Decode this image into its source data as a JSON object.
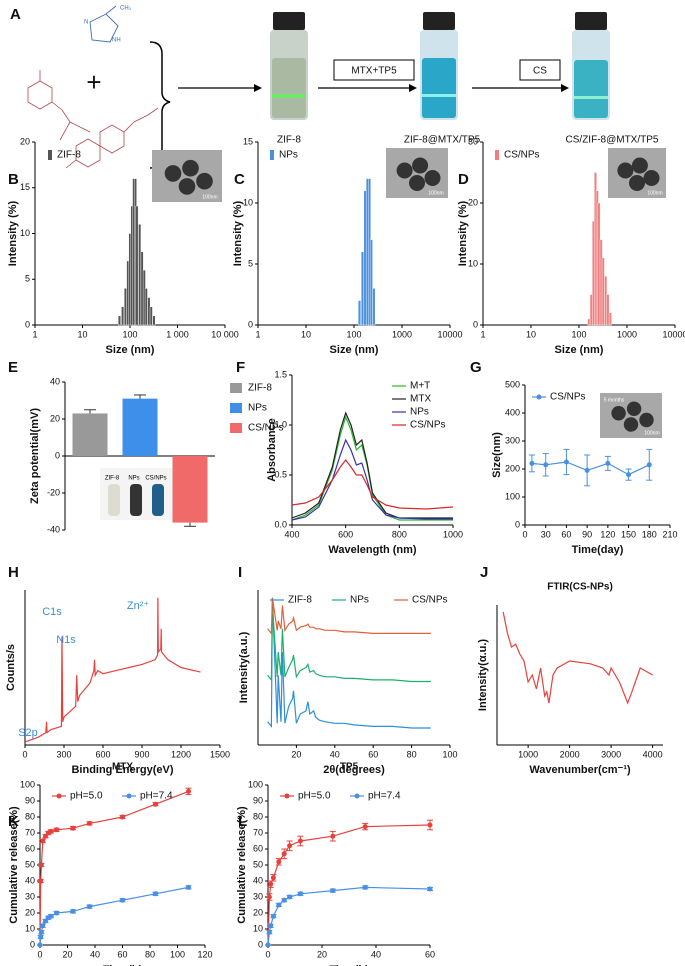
{
  "scheme": {
    "panel": "A",
    "plus": "+",
    "molecule_labels": [
      "CH₃",
      "NH",
      "N"
    ],
    "steps": [
      "ZIF-8",
      "ZIF-8@MTX/TP5",
      "CS/ZIF-8@MTX/TP5"
    ],
    "arrows": [
      "MTX+TP5",
      "CS"
    ]
  },
  "chart_data": [
    {
      "panel": "B",
      "type": "bar",
      "xlabel": "Size (nm)",
      "ylabel": "Intensity (%)",
      "xscale": "log",
      "xlim": [
        1,
        10000
      ],
      "xticks": [
        1,
        10,
        100,
        {
          "value": 1000,
          "label": "1 000"
        },
        {
          "value": 10000,
          "label": "10 000"
        }
      ],
      "ylim": [
        0,
        20
      ],
      "yticks": [
        0,
        5,
        10,
        15,
        20
      ],
      "inset_labels": [
        "100nm"
      ],
      "x": [
        60,
        70,
        80,
        90,
        100,
        110,
        120,
        130,
        140,
        160,
        180,
        200,
        220,
        250,
        280,
        320
      ],
      "series": [
        {
          "name": "ZIF-8",
          "color": "#555555",
          "values": [
            1,
            2,
            4,
            7,
            10,
            13,
            16,
            16,
            13,
            11,
            8,
            6,
            4,
            3,
            2,
            1
          ]
        }
      ]
    },
    {
      "panel": "C",
      "type": "bar",
      "xlabel": "Size (nm)",
      "ylabel": "Intensity (%)",
      "xscale": "log",
      "xlim": [
        1,
        10000
      ],
      "xticks": [
        1,
        10,
        100,
        1000,
        10000
      ],
      "ylim": [
        0,
        15
      ],
      "yticks": [
        0,
        5,
        10,
        15
      ],
      "inset_labels": [
        "100nm"
      ],
      "x": [
        130,
        150,
        170,
        190,
        210,
        230,
        260
      ],
      "series": [
        {
          "name": "NPs",
          "color": "#4a90e2",
          "values": [
            2,
            6,
            11,
            12,
            12,
            7,
            3
          ]
        }
      ]
    },
    {
      "panel": "D",
      "type": "bar",
      "xlabel": "Size (nm)",
      "ylabel": "Intensity (%)",
      "xscale": "log",
      "xlim": [
        1,
        10000
      ],
      "xticks": [
        1,
        10,
        100,
        1000,
        10000
      ],
      "ylim": [
        0,
        30
      ],
      "yticks": [
        0,
        10,
        20,
        30
      ],
      "inset_labels": [
        "100nm"
      ],
      "x": [
        160,
        180,
        200,
        220,
        240,
        260,
        290,
        320,
        360,
        400,
        450
      ],
      "series": [
        {
          "name": "CS/NPs",
          "color": "#f08080",
          "values": [
            1,
            5,
            17,
            25,
            22,
            20,
            14,
            11,
            8,
            5,
            2
          ]
        }
      ]
    },
    {
      "panel": "E",
      "type": "bar",
      "ylabel": "Zeta potential(mV)",
      "categories": [
        "ZIF-8",
        "NPs",
        "CS/NPs"
      ],
      "values": [
        23,
        31,
        -36
      ],
      "errors": [
        2,
        2,
        2
      ],
      "colors": [
        "#999999",
        "#3d8fea",
        "#f06a6a"
      ],
      "ylim": [
        -40,
        40
      ],
      "yticks": [
        -40,
        -20,
        0,
        20,
        40
      ],
      "inset_labels": [
        "ZIF-8",
        "NPs",
        "CS/NPs"
      ]
    },
    {
      "panel": "F",
      "type": "line",
      "xlabel": "Wavelength (nm)",
      "ylabel": "Absorbance",
      "xlim": [
        400,
        1000
      ],
      "xticks": [
        400,
        600,
        800,
        1000
      ],
      "ylim": [
        0,
        1.5
      ],
      "yticks": [
        {
          "value": 0,
          "label": "0.0"
        },
        0.5,
        {
          "value": 1,
          "label": "1.0"
        },
        1.5
      ],
      "x": [
        400,
        450,
        500,
        550,
        580,
        600,
        620,
        640,
        660,
        680,
        700,
        750,
        800,
        900,
        1000
      ],
      "series": [
        {
          "name": "M+T",
          "color": "#2db82d",
          "values": [
            0.05,
            0.1,
            0.2,
            0.55,
            0.9,
            1.08,
            0.95,
            0.75,
            0.8,
            0.6,
            0.3,
            0.1,
            0.05,
            0.05,
            0.05
          ]
        },
        {
          "name": "MTX",
          "color": "#222222",
          "values": [
            0.07,
            0.12,
            0.22,
            0.58,
            0.95,
            1.12,
            1.0,
            0.8,
            0.85,
            0.62,
            0.32,
            0.12,
            0.07,
            0.07,
            0.07
          ]
        },
        {
          "name": "NPs",
          "color": "#3a2fb0",
          "values": [
            0.05,
            0.08,
            0.18,
            0.45,
            0.7,
            0.85,
            0.75,
            0.6,
            0.62,
            0.45,
            0.25,
            0.1,
            0.07,
            0.06,
            0.06
          ]
        },
        {
          "name": "CS/NPs",
          "color": "#d62828",
          "values": [
            0.2,
            0.22,
            0.28,
            0.45,
            0.58,
            0.65,
            0.58,
            0.5,
            0.5,
            0.4,
            0.28,
            0.2,
            0.17,
            0.16,
            0.18
          ]
        }
      ]
    },
    {
      "panel": "G",
      "type": "line",
      "markers": true,
      "xlabel": "Time(day)",
      "ylabel": "Size(nm)",
      "xlim": [
        0,
        210
      ],
      "xticks": [
        0,
        30,
        60,
        90,
        120,
        150,
        180,
        210
      ],
      "ylim": [
        0,
        500
      ],
      "yticks": [
        0,
        100,
        200,
        300,
        400,
        500
      ],
      "inset_labels": [
        "5 months",
        "100nm"
      ],
      "x": [
        10,
        30,
        60,
        90,
        120,
        150,
        180
      ],
      "series": [
        {
          "name": "CS/NPs",
          "color": "#4a90e2",
          "values": [
            220,
            215,
            225,
            195,
            220,
            180,
            215
          ],
          "errors": [
            30,
            40,
            45,
            55,
            25,
            20,
            55
          ]
        }
      ]
    },
    {
      "panel": "H",
      "type": "line",
      "xlabel": "Binding Energy(eV)",
      "ylabel": "Counts/s",
      "xlim": [
        0,
        1500
      ],
      "xticks": [
        0,
        300,
        600,
        900,
        1200,
        1500
      ],
      "ylim": [
        0,
        100
      ],
      "annotations": [
        "S2p",
        "C1s",
        "N1s",
        "Zn²⁺"
      ],
      "x": [
        0,
        100,
        160,
        165,
        170,
        200,
        280,
        285,
        290,
        300,
        390,
        398,
        405,
        420,
        500,
        530,
        535,
        540,
        560,
        600,
        700,
        800,
        900,
        1000,
        1020,
        1022,
        1025,
        1045,
        1048,
        1050,
        1100,
        1200,
        1300,
        1350
      ],
      "series": [
        {
          "color": "#e8413c",
          "values": [
            2,
            5,
            8,
            15,
            8,
            10,
            12,
            70,
            15,
            18,
            25,
            45,
            28,
            32,
            40,
            48,
            55,
            45,
            48,
            46,
            48,
            50,
            52,
            55,
            58,
            95,
            60,
            62,
            75,
            60,
            55,
            50,
            48,
            47
          ]
        }
      ]
    },
    {
      "panel": "I",
      "type": "line",
      "xlabel": "2θ(degrees)",
      "ylabel": "Intensity(a.u.)",
      "xlim": [
        0,
        100
      ],
      "xticks": [
        20,
        40,
        60,
        80,
        100
      ],
      "ylim": [
        0,
        100
      ],
      "x": [
        5,
        7,
        7.5,
        10,
        10.5,
        12,
        12.7,
        14,
        16,
        18,
        18.5,
        20,
        22,
        25,
        26,
        27,
        29,
        30,
        32,
        35,
        40,
        45,
        50,
        60,
        70,
        80,
        90
      ],
      "series": [
        {
          "name": "ZIF-8",
          "color": "#2f8fd8",
          "values": [
            15,
            12,
            95,
            14,
            45,
            15,
            60,
            14,
            25,
            30,
            35,
            14,
            20,
            22,
            28,
            20,
            22,
            18,
            16,
            15,
            14,
            14,
            13,
            12,
            12,
            11,
            11
          ]
        },
        {
          "name": "NPs",
          "color": "#1fae6e",
          "values": [
            45,
            42,
            90,
            44,
            60,
            45,
            75,
            44,
            50,
            55,
            58,
            44,
            48,
            50,
            52,
            47,
            48,
            46,
            45,
            44,
            44,
            43,
            43,
            42,
            42,
            41,
            41
          ]
        },
        {
          "name": "CS/NPs",
          "color": "#e0603a",
          "values": [
            75,
            72,
            95,
            74,
            80,
            75,
            90,
            74,
            78,
            80,
            82,
            74,
            76,
            77,
            78,
            76,
            76,
            75,
            75,
            74,
            74,
            73,
            73,
            72,
            72,
            72,
            72
          ]
        }
      ]
    },
    {
      "panel": "J",
      "type": "line",
      "title": "FTIR(CS-NPs)",
      "xlabel": "Wavenumber(cm⁻¹)",
      "ylabel": "Intensity(α.u.)",
      "xlim": [
        250,
        4250
      ],
      "xticks": [
        1000,
        2000,
        3000,
        4000
      ],
      "ylim": [
        0,
        100
      ],
      "x": [
        400,
        500,
        600,
        700,
        800,
        900,
        1000,
        1100,
        1200,
        1300,
        1400,
        1450,
        1500,
        1600,
        1700,
        2000,
        2500,
        2800,
        2950,
        3000,
        3200,
        3400,
        3500,
        3700,
        4000
      ],
      "series": [
        {
          "color": "#e8413c",
          "values": [
            95,
            80,
            70,
            72,
            65,
            60,
            45,
            50,
            40,
            55,
            35,
            38,
            30,
            50,
            55,
            60,
            58,
            55,
            50,
            55,
            45,
            30,
            38,
            55,
            50
          ]
        }
      ]
    },
    {
      "panel": "K",
      "type": "line",
      "markers": true,
      "title": "MTX",
      "xlabel": "Time(h)",
      "ylabel": "Cumulative release(%)",
      "xlim": [
        0,
        120
      ],
      "xticks": [
        0,
        20,
        40,
        60,
        80,
        100,
        120
      ],
      "ylim": [
        0,
        100
      ],
      "yticks": [
        0,
        10,
        20,
        30,
        40,
        50,
        60,
        70,
        80,
        90,
        100
      ],
      "x": [
        0,
        0.5,
        1,
        2,
        4,
        6,
        8,
        12,
        24,
        36,
        60,
        84,
        108
      ],
      "series": [
        {
          "name": "pH=5.0",
          "color": "#e8413c",
          "values": [
            0,
            40,
            50,
            65,
            68,
            70,
            71,
            72,
            73,
            76,
            80,
            88,
            96
          ],
          "errors": [
            0,
            1,
            1,
            1,
            1,
            1,
            1,
            1,
            1,
            1,
            1,
            1,
            2
          ]
        },
        {
          "name": "pH=7.4",
          "color": "#4a90e2",
          "values": [
            0,
            5,
            8,
            12,
            15,
            17,
            18,
            20,
            21,
            24,
            28,
            32,
            36
          ],
          "errors": [
            0,
            1,
            1,
            1,
            1,
            1,
            1,
            1,
            1,
            1,
            1,
            1,
            1
          ]
        }
      ]
    },
    {
      "panel": "L",
      "type": "line",
      "markers": true,
      "title": "TP5",
      "xlabel": "Time(h)",
      "ylabel": "Cumulative release(%)",
      "xlim": [
        0,
        60
      ],
      "xticks": [
        0,
        20,
        40,
        60
      ],
      "ylim": [
        0,
        100
      ],
      "yticks": [
        0,
        10,
        20,
        30,
        40,
        50,
        60,
        70,
        80,
        90,
        100
      ],
      "x": [
        0,
        0.5,
        1,
        2,
        4,
        6,
        8,
        12,
        24,
        36,
        60
      ],
      "series": [
        {
          "name": "pH=5.0",
          "color": "#e8413c",
          "values": [
            0,
            30,
            38,
            42,
            52,
            57,
            62,
            65,
            68,
            74,
            75
          ],
          "errors": [
            0,
            2,
            2,
            2,
            2,
            3,
            3,
            3,
            3,
            2,
            3
          ]
        },
        {
          "name": "pH=7.4",
          "color": "#4a90e2",
          "values": [
            0,
            8,
            12,
            18,
            25,
            28,
            30,
            32,
            34,
            36,
            35
          ],
          "errors": [
            0,
            1,
            1,
            1,
            1,
            1,
            1,
            1,
            1,
            1,
            1
          ]
        }
      ]
    }
  ]
}
